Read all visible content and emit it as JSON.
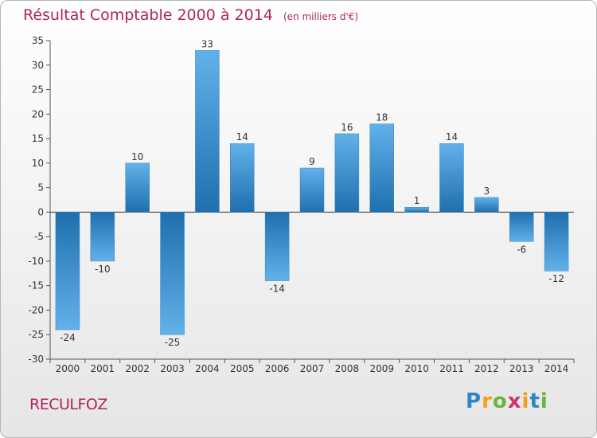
{
  "title": "Résultat Comptable 2000 à 2014",
  "unit_note": "(en milliers d'€)",
  "commune": "RECULFOZ",
  "brand": {
    "letters": [
      "P",
      "r",
      "o",
      "x",
      "i",
      "t",
      "i"
    ]
  },
  "colors": {
    "title": "#b0235f",
    "bar_light": "#62b1ea",
    "bar_dark": "#1f6fae"
  },
  "chart_data": {
    "type": "bar",
    "title": "Résultat Comptable 2000 à 2014",
    "xlabel": "",
    "ylabel": "",
    "categories": [
      "2000",
      "2001",
      "2002",
      "2003",
      "2004",
      "2005",
      "2006",
      "2007",
      "2008",
      "2009",
      "2010",
      "2011",
      "2012",
      "2013",
      "2014"
    ],
    "values": [
      -24,
      -10,
      10,
      -25,
      33,
      14,
      -14,
      9,
      16,
      18,
      1,
      14,
      3,
      -6,
      -12
    ],
    "data_labels": [
      "-24",
      "-10",
      "10",
      "-25",
      "33",
      "14",
      "-14",
      "9",
      "16",
      "18",
      "1",
      "14",
      "3",
      "-6",
      "-12"
    ],
    "ylim": [
      -30,
      35
    ],
    "yticks": [
      35,
      30,
      25,
      20,
      15,
      10,
      5,
      0,
      -5,
      -10,
      -15,
      -20,
      -25,
      -30
    ],
    "ytick_labels": [
      "35",
      "30",
      "25",
      "20",
      "15",
      "10",
      "5",
      "0",
      "-5",
      "-10",
      "-15",
      "-20",
      "-25",
      "-30"
    ],
    "grid": false
  }
}
